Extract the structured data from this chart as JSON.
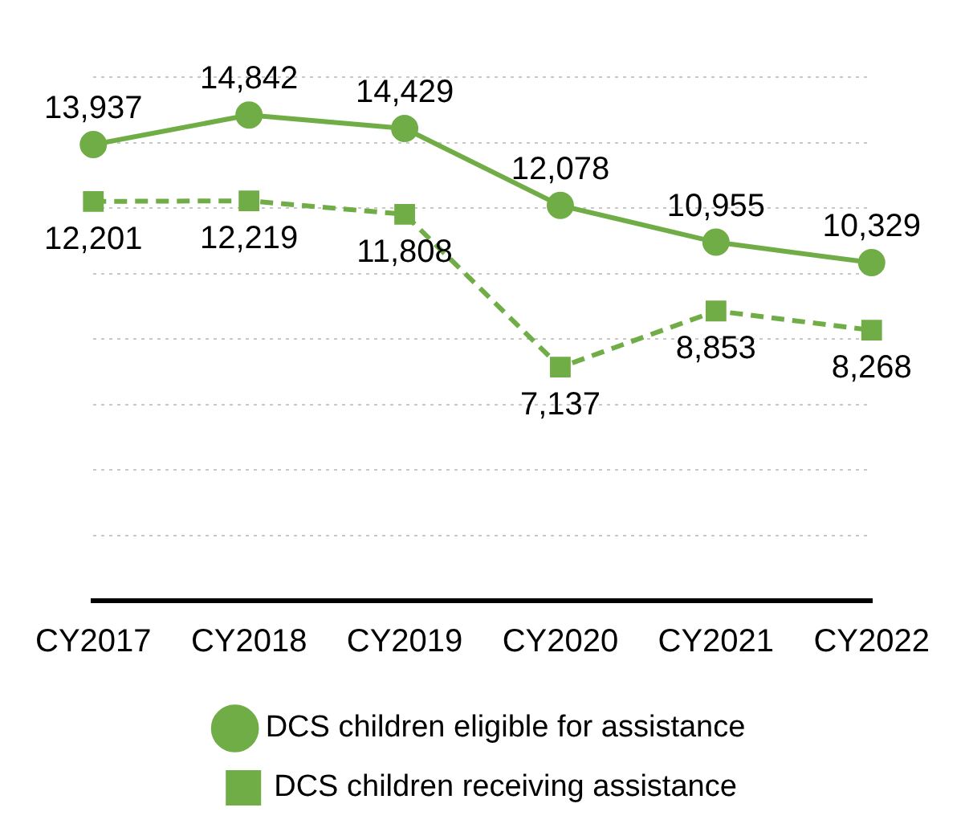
{
  "chart_data": {
    "type": "line",
    "categories": [
      "CY2017",
      "CY2018",
      "CY2019",
      "CY2020",
      "CY2021",
      "CY2022"
    ],
    "series": [
      {
        "name": "DCS children eligible for assistance",
        "color": "#70ad47",
        "values": [
          13937,
          14842,
          14429,
          12078,
          10955,
          10329
        ],
        "value_labels": [
          "13,937",
          "14,842",
          "14,429",
          "12,078",
          "10,955",
          "10,329"
        ],
        "marker": "circle",
        "line_style": "solid"
      },
      {
        "name": "DCS children receiving assistance",
        "color": "#70ad47",
        "values": [
          12201,
          12219,
          11808,
          7137,
          8853,
          8268
        ],
        "value_labels": [
          "12,201",
          "12,219",
          "11,808",
          "7,137",
          "8,853",
          "8,268"
        ],
        "marker": "square",
        "line_style": "dashed"
      }
    ],
    "tick_labels": "x",
    "grid": "y",
    "legend": "bottom"
  }
}
